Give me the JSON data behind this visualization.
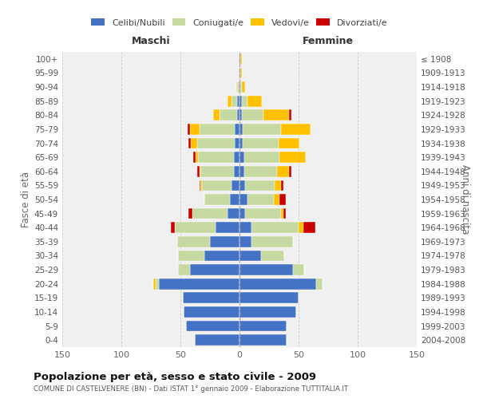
{
  "age_groups": [
    "0-4",
    "5-9",
    "10-14",
    "15-19",
    "20-24",
    "25-29",
    "30-34",
    "35-39",
    "40-44",
    "45-49",
    "50-54",
    "55-59",
    "60-64",
    "65-69",
    "70-74",
    "75-79",
    "80-84",
    "85-89",
    "90-94",
    "95-99",
    "100+"
  ],
  "birth_years": [
    "2004-2008",
    "1999-2003",
    "1994-1998",
    "1989-1993",
    "1984-1988",
    "1979-1983",
    "1974-1978",
    "1969-1973",
    "1964-1968",
    "1959-1963",
    "1954-1958",
    "1949-1953",
    "1944-1948",
    "1939-1943",
    "1934-1938",
    "1929-1933",
    "1924-1928",
    "1919-1923",
    "1914-1918",
    "1909-1913",
    "≤ 1908"
  ],
  "colors": {
    "celibi": "#4472c4",
    "coniugati": "#c5d9a0",
    "vedovi": "#ffc000",
    "divorziati": "#cc0000",
    "background": "#f0f0f0"
  },
  "maschi": {
    "celibi": [
      38,
      45,
      47,
      48,
      68,
      42,
      30,
      25,
      20,
      10,
      8,
      7,
      5,
      5,
      4,
      4,
      2,
      2,
      1,
      1,
      1
    ],
    "coniugati": [
      0,
      0,
      0,
      0,
      3,
      10,
      22,
      28,
      35,
      30,
      22,
      25,
      28,
      30,
      32,
      30,
      15,
      5,
      1,
      0,
      0
    ],
    "vedovi": [
      0,
      0,
      0,
      0,
      2,
      0,
      0,
      0,
      0,
      0,
      0,
      1,
      1,
      2,
      5,
      8,
      5,
      3,
      1,
      0,
      0
    ],
    "divorziati": [
      0,
      0,
      0,
      0,
      0,
      0,
      0,
      0,
      3,
      3,
      0,
      1,
      2,
      2,
      2,
      2,
      0,
      0,
      0,
      0,
      0
    ]
  },
  "femmine": {
    "celibi": [
      40,
      40,
      48,
      50,
      65,
      45,
      18,
      10,
      10,
      5,
      7,
      5,
      4,
      4,
      3,
      3,
      2,
      2,
      1,
      1,
      1
    ],
    "coniugati": [
      0,
      0,
      0,
      0,
      5,
      10,
      20,
      35,
      40,
      30,
      22,
      25,
      28,
      30,
      30,
      32,
      18,
      5,
      1,
      0,
      0
    ],
    "vedovi": [
      0,
      0,
      0,
      0,
      0,
      0,
      0,
      0,
      4,
      2,
      5,
      5,
      10,
      22,
      18,
      25,
      22,
      12,
      3,
      1,
      1
    ],
    "divorziati": [
      0,
      0,
      0,
      0,
      0,
      0,
      0,
      0,
      10,
      2,
      5,
      2,
      2,
      0,
      0,
      0,
      2,
      0,
      0,
      0,
      0
    ]
  },
  "title": "Popolazione per età, sesso e stato civile - 2009",
  "subtitle": "COMUNE DI CASTELVENERE (BN) - Dati ISTAT 1° gennaio 2009 - Elaborazione TUTTITALIA.IT",
  "label_maschi": "Maschi",
  "label_femmine": "Femmine",
  "ylabel_left": "Fasce di età",
  "ylabel_right": "Anni di nascita",
  "xlim": 150,
  "legend_labels": [
    "Celibi/Nubili",
    "Coniugati/e",
    "Vedovi/e",
    "Divorziati/e"
  ]
}
